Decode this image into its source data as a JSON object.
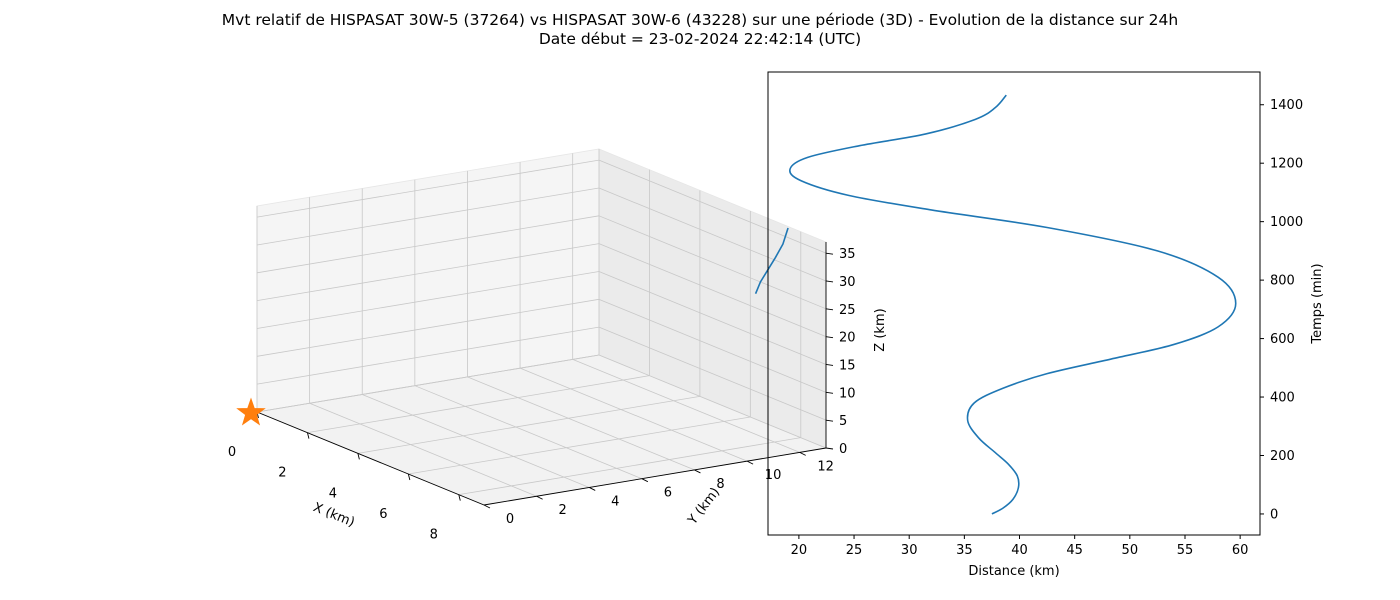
{
  "figure": {
    "title_line1": "Mvt relatif de HISPASAT 30W-5 (37264) vs HISPASAT 30W-6 (43228) sur une période (3D) - Evolution de la distance sur 24h",
    "title_line2": "Date début = 23-02-2024 22:42:14 (UTC)"
  },
  "chart_data": [
    {
      "type": "line3d",
      "xlabel": "X (km)",
      "ylabel": "Y (km)",
      "zlabel": "Z (km)",
      "xlim": [
        0,
        9
      ],
      "ylim": [
        0,
        13
      ],
      "zlim": [
        0,
        37
      ],
      "xticks": [
        0,
        2,
        4,
        6,
        8
      ],
      "yticks": [
        0,
        2,
        4,
        6,
        8,
        10,
        12
      ],
      "zticks": [
        0,
        5,
        10,
        15,
        20,
        25,
        30,
        35
      ],
      "grid": true,
      "series": [
        {
          "color": "#1f77b4",
          "points": [
            [
              6.0,
              13.2,
              22.0
            ],
            [
              6.4,
              13.0,
              25.0
            ],
            [
              6.8,
              12.9,
              28.0
            ],
            [
              7.2,
              12.8,
              31.0
            ],
            [
              7.5,
              12.8,
              34.0
            ],
            [
              7.6,
              12.9,
              37.0
            ]
          ]
        }
      ],
      "marker": {
        "shape": "star",
        "color": "#ff7f0e",
        "x": 0,
        "y": 0,
        "z": 0
      }
    },
    {
      "type": "line",
      "xlabel": "Distance (km)",
      "ylabel": "Temps (min)",
      "xlim": [
        17.2,
        61.8
      ],
      "ylim": [
        -72,
        1512
      ],
      "xticks": [
        20,
        25,
        30,
        35,
        40,
        45,
        50,
        55,
        60
      ],
      "yticks": [
        0,
        200,
        400,
        600,
        800,
        1000,
        1200,
        1400
      ],
      "yaxis_side": "right",
      "grid": false,
      "series": [
        {
          "color": "#1f77b4",
          "points": [
            [
              37.5,
              0
            ],
            [
              38.5,
              20
            ],
            [
              39.4,
              50
            ],
            [
              39.9,
              90
            ],
            [
              39.8,
              130
            ],
            [
              39.0,
              170
            ],
            [
              37.8,
              210
            ],
            [
              36.3,
              260
            ],
            [
              35.3,
              320
            ],
            [
              35.9,
              380
            ],
            [
              38.5,
              430
            ],
            [
              42.5,
              480
            ],
            [
              48.3,
              530
            ],
            [
              54.0,
              580
            ],
            [
              58.0,
              640
            ],
            [
              59.6,
              720
            ],
            [
              58.0,
              810
            ],
            [
              52.5,
              900
            ],
            [
              42.5,
              980
            ],
            [
              32.0,
              1040
            ],
            [
              24.5,
              1090
            ],
            [
              20.2,
              1140
            ],
            [
              19.2,
              1180
            ],
            [
              20.8,
              1220
            ],
            [
              25.5,
              1260
            ],
            [
              31.5,
              1300
            ],
            [
              36.0,
              1350
            ],
            [
              37.8,
              1390
            ],
            [
              38.8,
              1433
            ]
          ]
        }
      ]
    }
  ]
}
